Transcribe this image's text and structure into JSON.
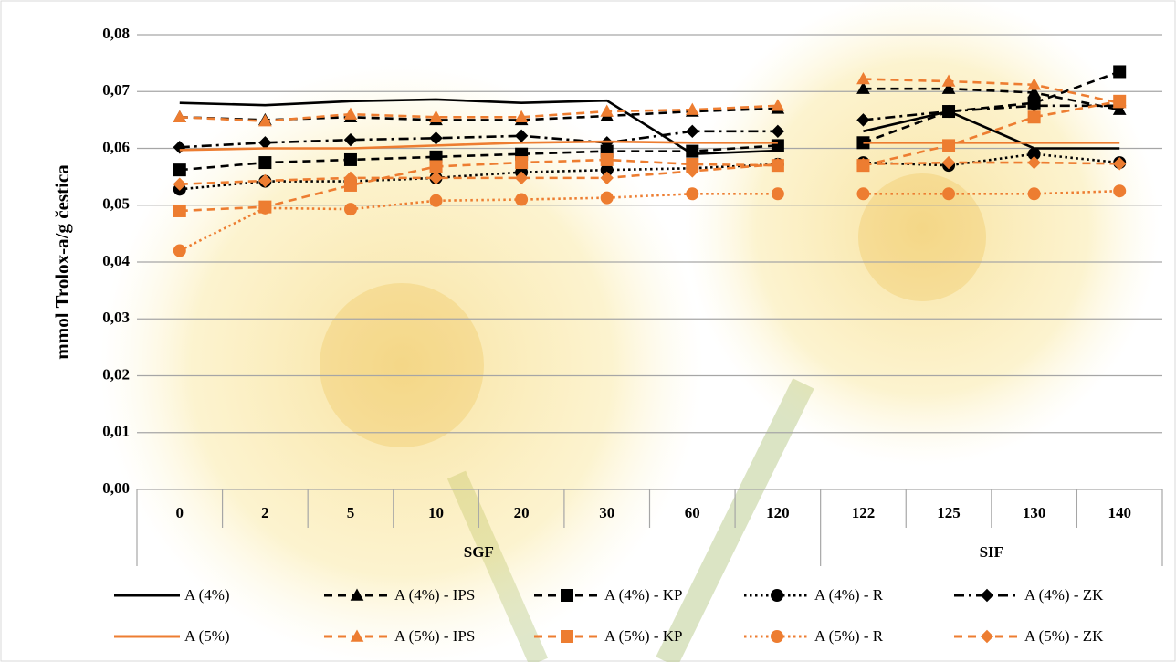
{
  "chart_data": {
    "type": "line",
    "y_label": "mmol Trolox-a/g čestica",
    "categories": [
      "0",
      "2",
      "5",
      "10",
      "20",
      "30",
      "60",
      "120",
      "122",
      "125",
      "130",
      "140"
    ],
    "groups": [
      {
        "name": "SGF",
        "count": 8
      },
      {
        "name": "SIF",
        "count": 4
      }
    ],
    "ylim": [
      0,
      0.08
    ],
    "yticks": [
      {
        "value": 0,
        "label": "0,00"
      },
      {
        "value": 0.01,
        "label": "0,01"
      },
      {
        "value": 0.02,
        "label": "0,02"
      },
      {
        "value": 0.03,
        "label": "0,03"
      },
      {
        "value": 0.04,
        "label": "0,04"
      },
      {
        "value": 0.05,
        "label": "0,05"
      },
      {
        "value": 0.06,
        "label": "0,06"
      },
      {
        "value": 0.07,
        "label": "0,07"
      },
      {
        "value": 0.08,
        "label": "0,08"
      }
    ],
    "grid": true,
    "legend": "bottom",
    "series": [
      {
        "name": "A (4%)",
        "color": "#000000",
        "dash": "solid",
        "marker": "none",
        "values": [
          0.068,
          0.0676,
          0.0683,
          0.0686,
          0.068,
          0.0684,
          0.059,
          0.0596,
          0.063,
          0.0665,
          0.06,
          0.06
        ]
      },
      {
        "name": "A (4%) - IPS",
        "color": "#000000",
        "dash": "dash",
        "marker": "triangle",
        "values": [
          0.0655,
          0.065,
          0.0655,
          0.065,
          0.065,
          0.0657,
          0.0665,
          0.067,
          0.0705,
          0.0705,
          0.0698,
          0.0668
        ]
      },
      {
        "name": "A (4%) - KP",
        "color": "#000000",
        "dash": "dash",
        "marker": "square",
        "values": [
          0.0562,
          0.0575,
          0.058,
          0.0585,
          0.059,
          0.0595,
          0.0595,
          0.0605,
          0.061,
          0.0665,
          0.068,
          0.0735
        ]
      },
      {
        "name": "A (4%) - R",
        "color": "#000000",
        "dash": "dot",
        "marker": "circle",
        "values": [
          0.0528,
          0.0542,
          0.0542,
          0.0548,
          0.0558,
          0.0562,
          0.0565,
          0.0572,
          0.0575,
          0.057,
          0.059,
          0.0575
        ]
      },
      {
        "name": "A (4%) - ZK",
        "color": "#000000",
        "dash": "dashdot",
        "marker": "diamond",
        "values": [
          0.0602,
          0.061,
          0.0615,
          0.0618,
          0.0622,
          0.061,
          0.063,
          0.063,
          0.065,
          0.0665,
          0.0675,
          0.0675
        ]
      },
      {
        "name": "A (5%)",
        "color": "#ed7d31",
        "dash": "solid",
        "marker": "none",
        "values": [
          0.0597,
          0.06,
          0.06,
          0.0605,
          0.061,
          0.0612,
          0.061,
          0.061,
          0.061,
          0.061,
          0.061,
          0.061
        ]
      },
      {
        "name": "A (5%) - IPS",
        "color": "#ed7d31",
        "dash": "dash",
        "marker": "triangle",
        "values": [
          0.0655,
          0.0648,
          0.066,
          0.0655,
          0.0655,
          0.0665,
          0.0668,
          0.0675,
          0.0722,
          0.0718,
          0.0712,
          0.068
        ]
      },
      {
        "name": "A (5%) - KP",
        "color": "#ed7d31",
        "dash": "dash",
        "marker": "square",
        "values": [
          0.049,
          0.0497,
          0.0535,
          0.0568,
          0.0575,
          0.058,
          0.0572,
          0.057,
          0.057,
          0.0605,
          0.0655,
          0.0683
        ]
      },
      {
        "name": "A (5%) - R",
        "color": "#ed7d31",
        "dash": "dot",
        "marker": "circle",
        "values": [
          0.042,
          0.0495,
          0.0493,
          0.0508,
          0.051,
          0.0513,
          0.052,
          0.052,
          0.052,
          0.052,
          0.052,
          0.0525
        ]
      },
      {
        "name": "A (5%) - ZK",
        "color": "#ed7d31",
        "dash": "dash",
        "marker": "diamond",
        "values": [
          0.0537,
          0.0543,
          0.0548,
          0.0548,
          0.0548,
          0.0548,
          0.056,
          0.0572,
          0.0572,
          0.0575,
          0.0575,
          0.0573
        ]
      }
    ]
  }
}
